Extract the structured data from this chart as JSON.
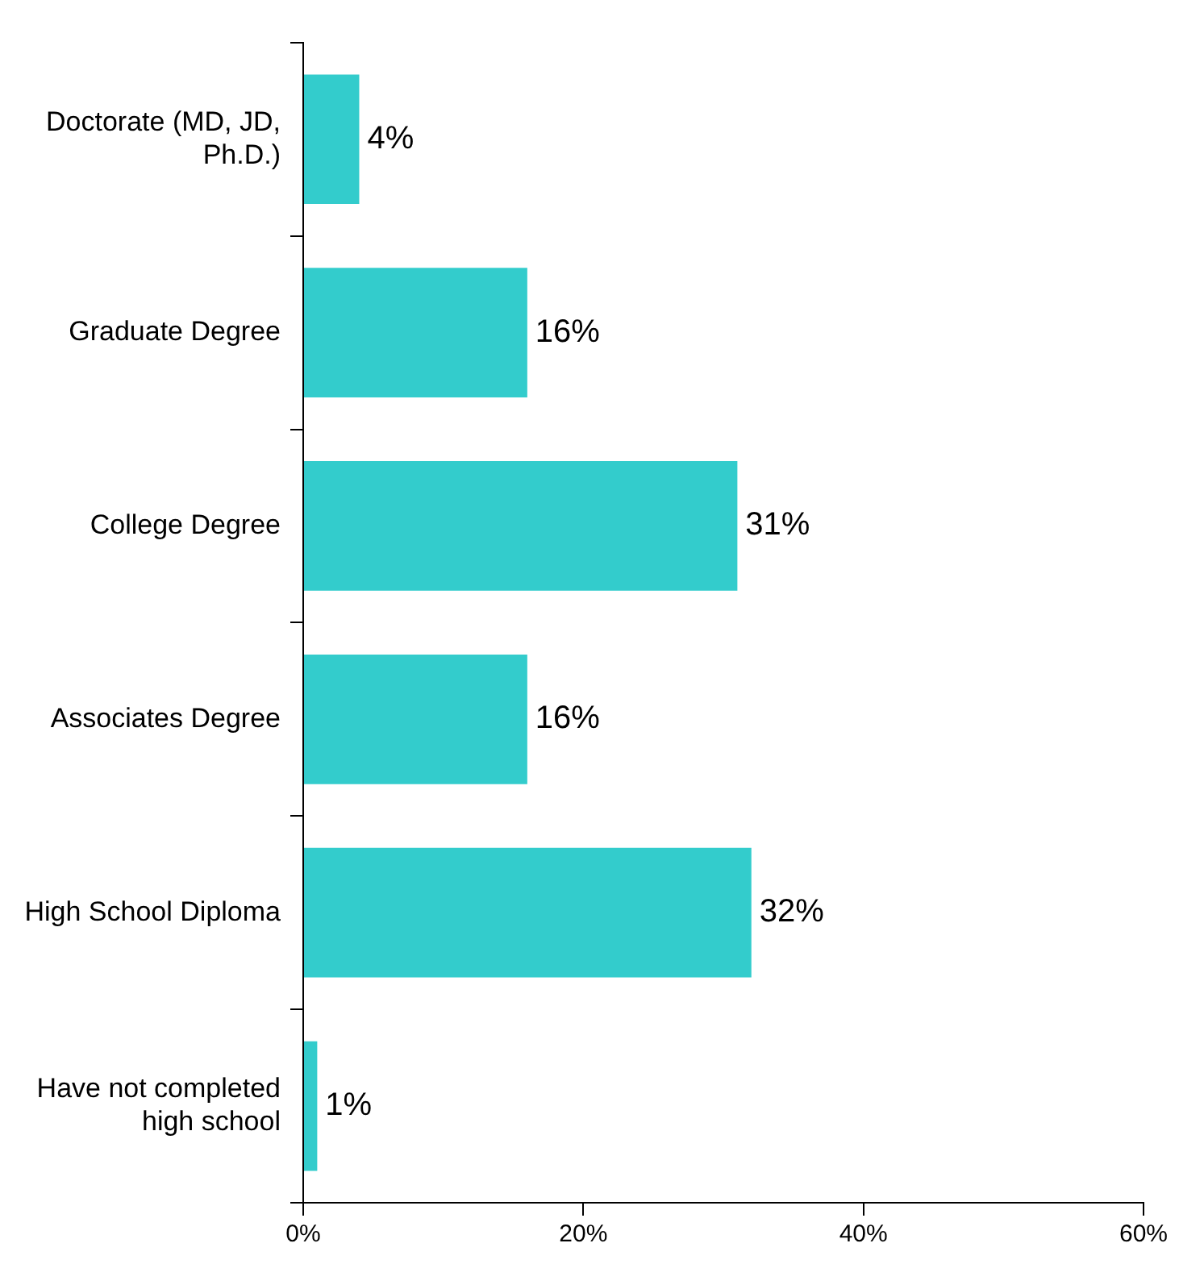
{
  "chart_data": {
    "type": "bar",
    "orientation": "horizontal",
    "categories": [
      "Doctorate (MD, JD, Ph.D.)",
      "Graduate Degree",
      "College Degree",
      "Associates Degree",
      "High School Diploma",
      "Have not completed high school"
    ],
    "values": [
      4,
      16,
      31,
      16,
      32,
      1
    ],
    "value_labels": [
      "4%",
      "16%",
      "31%",
      "16%",
      "32%",
      "1%"
    ],
    "color": "#33cccc",
    "xlim": [
      0,
      60
    ],
    "xticks": [
      {
        "value": 0,
        "label": "0%"
      },
      {
        "value": 20,
        "label": "20%"
      },
      {
        "value": 40,
        "label": "40%"
      },
      {
        "value": 60,
        "label": "60%"
      }
    ],
    "grid": false,
    "legend": false
  }
}
